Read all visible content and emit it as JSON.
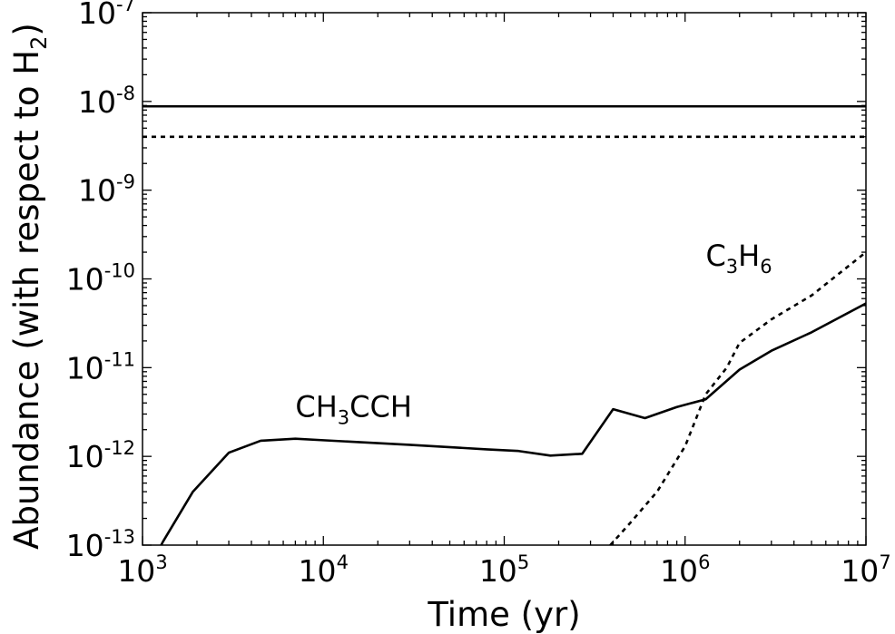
{
  "chart_data": {
    "type": "line",
    "title": "",
    "xlabel": "Time (yr)",
    "ylabel": {
      "main": "Abundance (with respect to H",
      "sub": "2",
      "close": ")"
    },
    "xscale": "log",
    "yscale": "log",
    "xlim": [
      1000,
      10000000
    ],
    "ylim": [
      1e-13,
      1e-07
    ],
    "xticks": [
      {
        "value": 1000,
        "base": "10",
        "exp": "3"
      },
      {
        "value": 10000,
        "base": "10",
        "exp": "4"
      },
      {
        "value": 100000,
        "base": "10",
        "exp": "5"
      },
      {
        "value": 1000000,
        "base": "10",
        "exp": "6"
      },
      {
        "value": 10000000,
        "base": "10",
        "exp": "7"
      }
    ],
    "yticks": [
      {
        "value": 1e-13,
        "base": "10",
        "exp": "-13"
      },
      {
        "value": 1e-12,
        "base": "10",
        "exp": "-12"
      },
      {
        "value": 1e-11,
        "base": "10",
        "exp": "-11"
      },
      {
        "value": 1e-10,
        "base": "10",
        "exp": "-10"
      },
      {
        "value": 1e-09,
        "base": "10",
        "exp": "-9"
      },
      {
        "value": 1e-08,
        "base": "10",
        "exp": "-8"
      },
      {
        "value": 1e-07,
        "base": "10",
        "exp": "-7"
      }
    ],
    "grid": false,
    "series": [
      {
        "name": "CH3CCH",
        "style": "solid",
        "color": "#000000",
        "points": [
          [
            1000,
            4e-14
          ],
          [
            1300,
            1.1e-13
          ],
          [
            1900,
            4e-13
          ],
          [
            3000,
            1.1e-12
          ],
          [
            4500,
            1.5e-12
          ],
          [
            7000,
            1.58e-12
          ],
          [
            10000,
            1.52e-12
          ],
          [
            30000,
            1.35e-12
          ],
          [
            80000,
            1.2e-12
          ],
          [
            120000,
            1.15e-12
          ],
          [
            180000,
            1.02e-12
          ],
          [
            270000,
            1.07e-12
          ],
          [
            400000,
            3.4e-12
          ],
          [
            600000,
            2.7e-12
          ],
          [
            900000,
            3.6e-12
          ],
          [
            1300000,
            4.4e-12
          ],
          [
            2000000,
            9.5e-12
          ],
          [
            3000000,
            1.55e-11
          ],
          [
            5000000,
            2.5e-11
          ],
          [
            10000000,
            5.3e-11
          ]
        ]
      },
      {
        "name": "C3H6",
        "style": "dashed",
        "color": "#000000",
        "points": [
          [
            330000,
            7e-14
          ],
          [
            500000,
            1.8e-13
          ],
          [
            700000,
            4e-13
          ],
          [
            1000000,
            1.3e-12
          ],
          [
            1300000,
            5e-12
          ],
          [
            1700000,
            1e-11
          ],
          [
            2000000,
            1.9e-11
          ],
          [
            3000000,
            3.5e-11
          ],
          [
            5000000,
            6.5e-11
          ],
          [
            10000000,
            2e-10
          ]
        ]
      },
      {
        "name": "",
        "style": "solid",
        "color": "#000000",
        "points": [
          [
            1000,
            8.8e-09
          ],
          [
            10000000,
            8.8e-09
          ]
        ]
      },
      {
        "name": "",
        "style": "dashed",
        "color": "#000000",
        "points": [
          [
            1000,
            4e-09
          ],
          [
            10000000,
            4e-09
          ]
        ]
      }
    ],
    "annotations": [
      {
        "base": "CH",
        "sub": "3",
        "rest": "CCH",
        "x": 7000,
        "y": 2.8e-12
      },
      {
        "parts": [
          {
            "t": "C"
          },
          {
            "t": "3",
            "sub": true
          },
          {
            "t": "H"
          },
          {
            "t": "6",
            "sub": true
          }
        ],
        "x": 1300000,
        "y": 1.4e-10
      }
    ]
  }
}
